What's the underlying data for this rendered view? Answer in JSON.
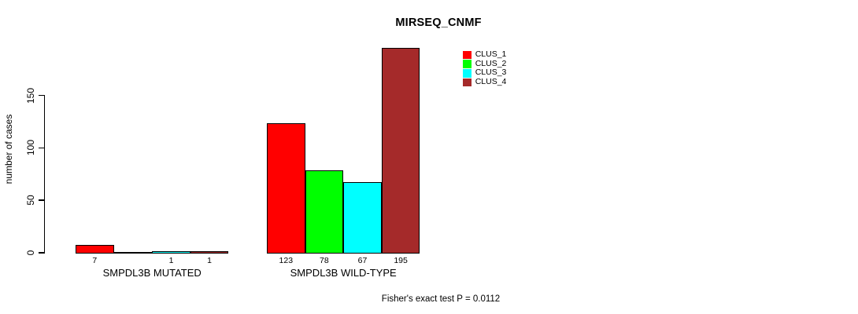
{
  "chart_data": {
    "type": "bar",
    "title": "MIRSEQ_CNMF",
    "ylabel": "number of cases",
    "xlabel": "",
    "ylim": [
      0,
      150
    ],
    "yticks": [
      0,
      50,
      100,
      150
    ],
    "grid": false,
    "legend_position": "top-right-inside",
    "annotation": "Fisher's exact test P = 0.0112",
    "series": [
      {
        "name": "CLUS_1",
        "color": "#FF0000"
      },
      {
        "name": "CLUS_2",
        "color": "#00FF00"
      },
      {
        "name": "CLUS_3",
        "color": "#00FFFF"
      },
      {
        "name": "CLUS_4",
        "color": "#A52A2A"
      }
    ],
    "groups": [
      {
        "label": "SMPDL3B MUTATED",
        "values": [
          7,
          0,
          1,
          1
        ],
        "bar_labels": [
          "7",
          "",
          "1",
          "1"
        ]
      },
      {
        "label": "SMPDL3B WILD-TYPE",
        "values": [
          123,
          78,
          67,
          195
        ],
        "bar_labels": [
          "123",
          "78",
          "67",
          "195"
        ]
      }
    ]
  }
}
